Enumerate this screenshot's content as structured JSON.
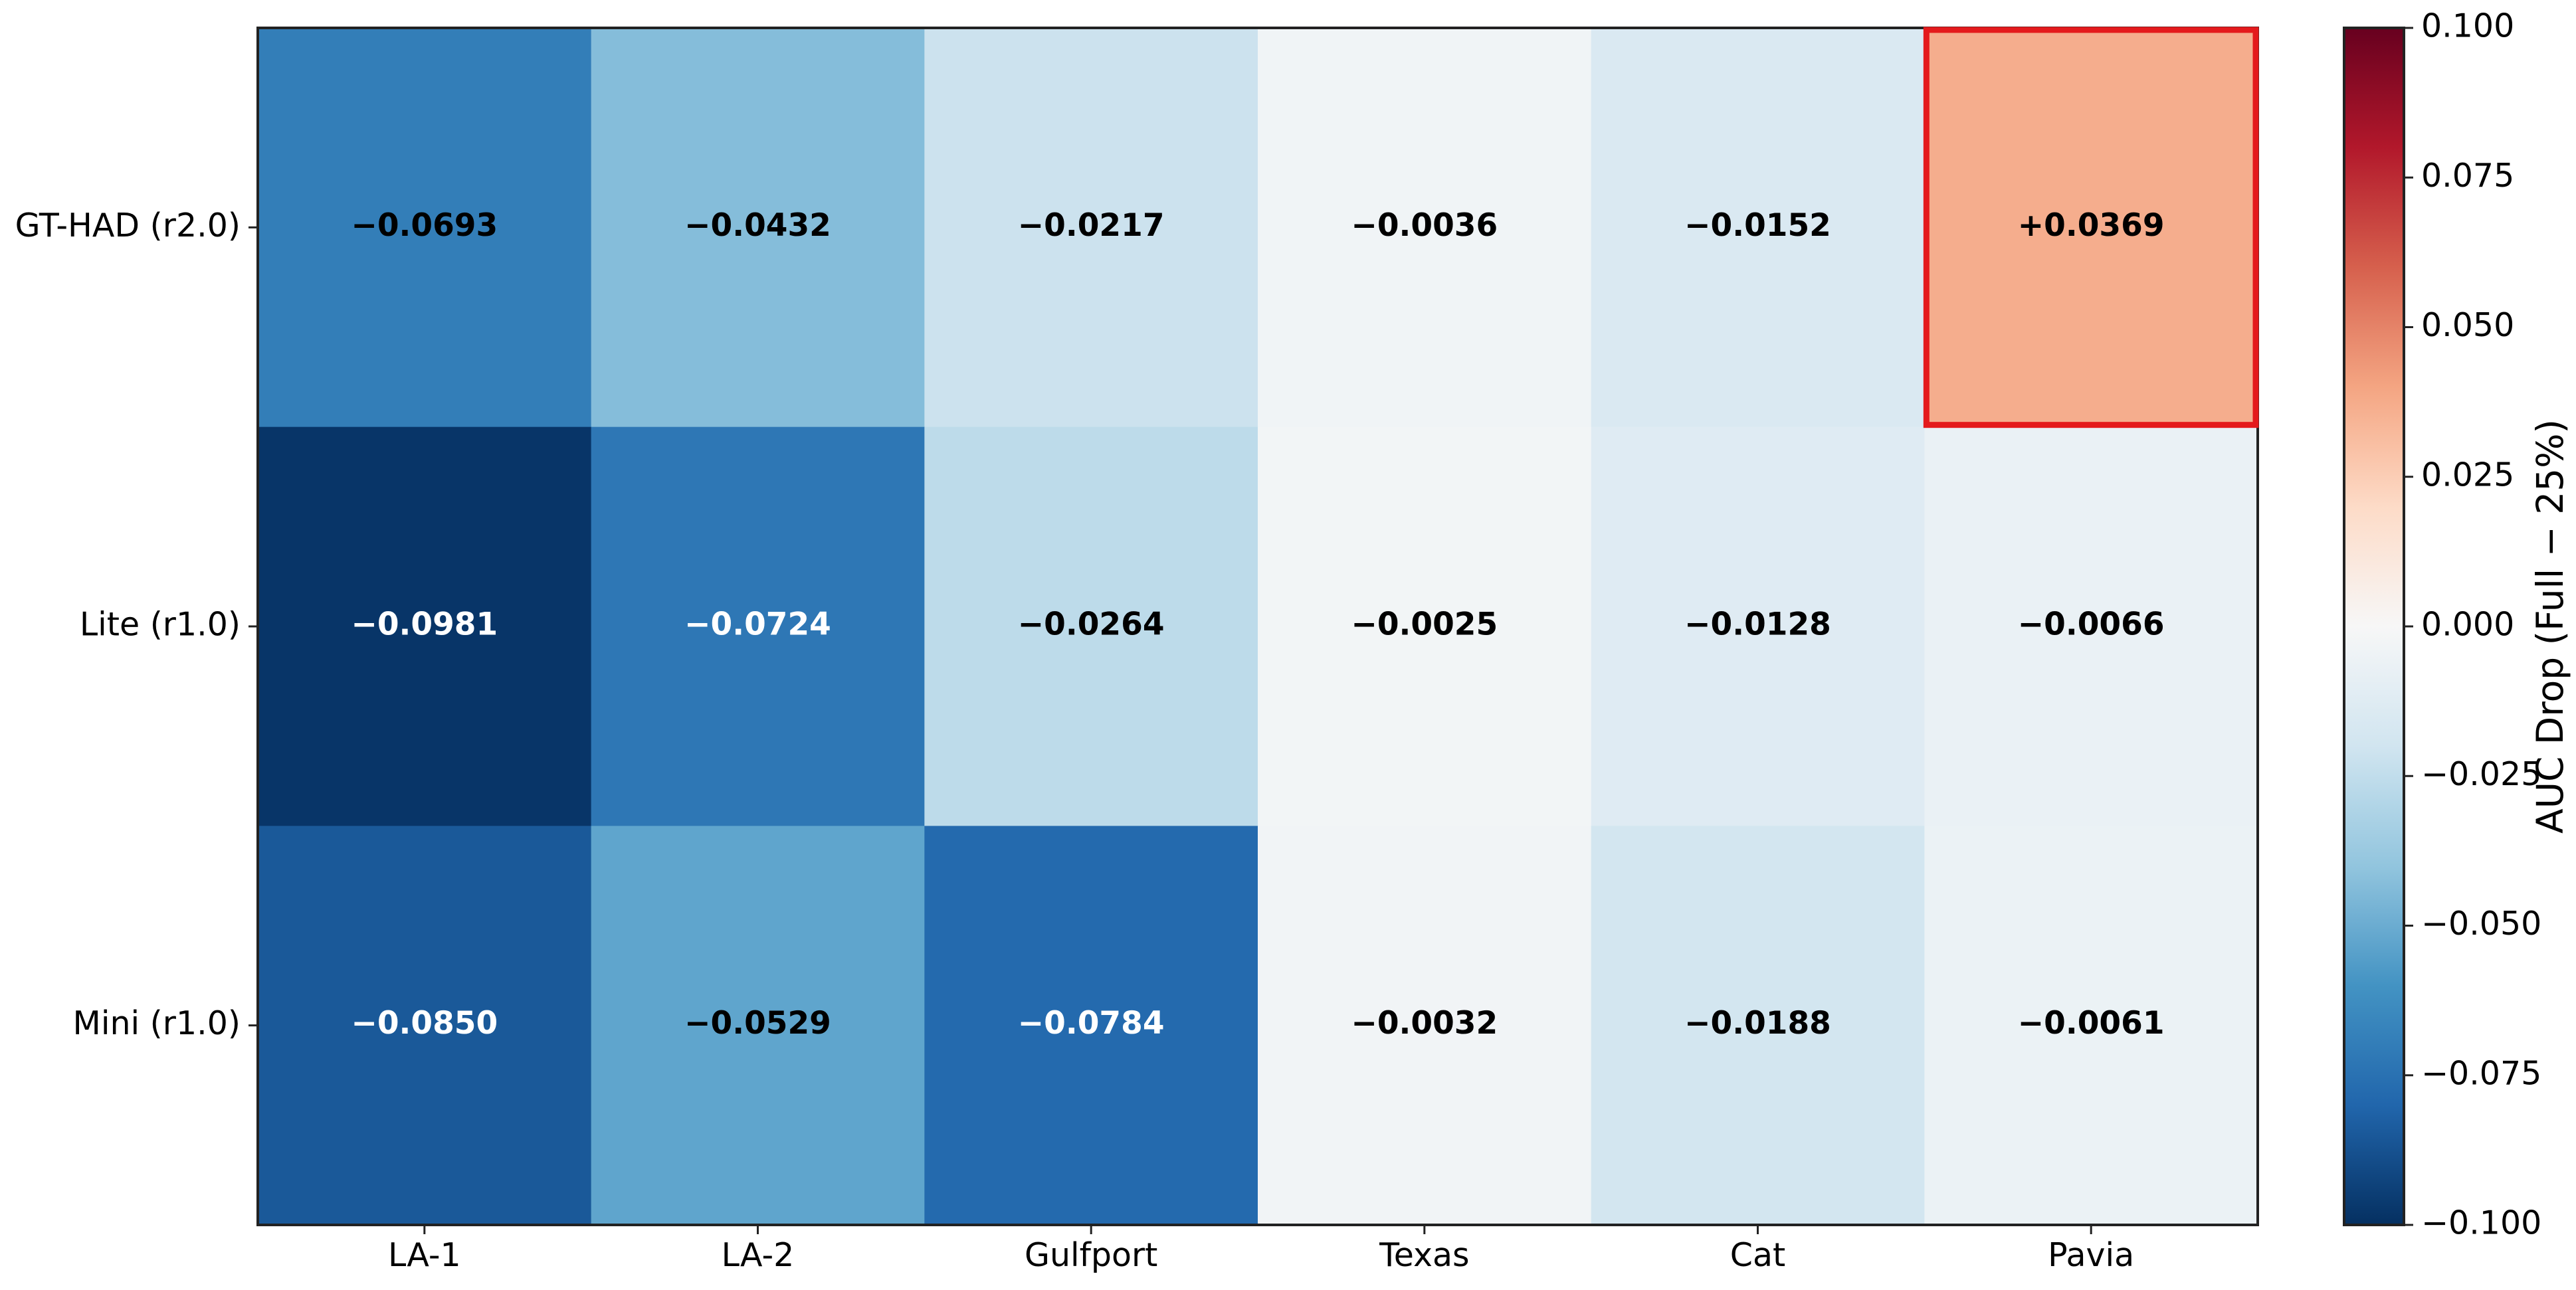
{
  "chart_data": {
    "type": "heatmap",
    "title": "",
    "xlabel": "",
    "ylabel": "",
    "x_categories": [
      "LA-1",
      "LA-2",
      "Gulfport",
      "Texas",
      "Cat",
      "Pavia"
    ],
    "y_categories": [
      "GT-HAD (r2.0)",
      "Lite (r1.0)",
      "Mini (r1.0)"
    ],
    "values": [
      [
        -0.0693,
        -0.0432,
        -0.0217,
        -0.0036,
        -0.0152,
        0.0369
      ],
      [
        -0.0981,
        -0.0724,
        -0.0264,
        -0.0025,
        -0.0128,
        -0.0066
      ],
      [
        -0.085,
        -0.0529,
        -0.0784,
        -0.0032,
        -0.0188,
        -0.0061
      ]
    ],
    "value_labels": [
      [
        "−0.0693",
        "−0.0432",
        "−0.0217",
        "−0.0036",
        "−0.0152",
        "+0.0369"
      ],
      [
        "−0.0981",
        "−0.0724",
        "−0.0264",
        "−0.0025",
        "−0.0128",
        "−0.0066"
      ],
      [
        "−0.0850",
        "−0.0529",
        "−0.0784",
        "−0.0032",
        "−0.0188",
        "−0.0061"
      ]
    ],
    "colormap": "RdBu_r",
    "vmin": -0.1,
    "vmax": 0.1,
    "highlighted_cell": {
      "row": 0,
      "col": 5,
      "color": "#e41a1c"
    },
    "colorbar": {
      "label": "AUC Drop (Full − 25%)",
      "ticks": [
        0.1,
        0.075,
        0.05,
        0.025,
        0.0,
        -0.025,
        -0.05,
        -0.075,
        -0.1
      ],
      "tick_labels": [
        "0.100",
        "0.075",
        "0.050",
        "0.025",
        "0.000",
        "−0.025",
        "−0.050",
        "−0.075",
        "−0.100"
      ]
    },
    "grid": false
  }
}
